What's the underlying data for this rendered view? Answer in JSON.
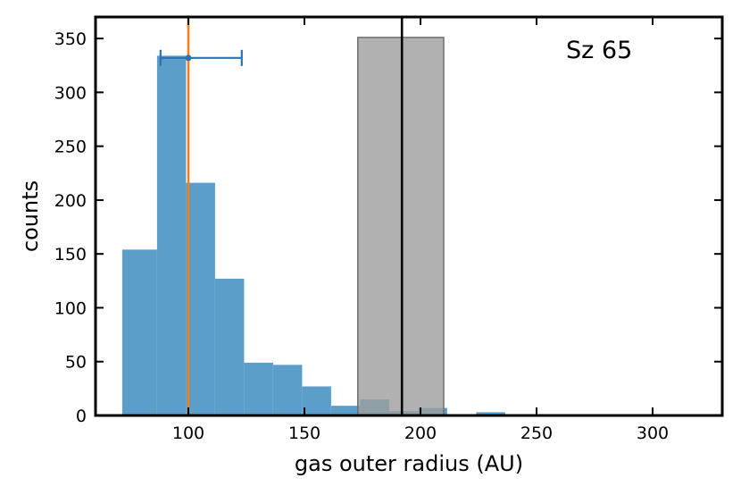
{
  "chart_data": {
    "type": "bar",
    "xlabel": "gas outer radius (AU)",
    "ylabel": "counts",
    "xlim": [
      60,
      330
    ],
    "ylim": [
      0,
      370
    ],
    "xticks": [
      100,
      150,
      200,
      250,
      300
    ],
    "yticks": [
      0,
      50,
      100,
      150,
      200,
      250,
      300,
      350
    ],
    "annotation": "Sz 65",
    "histogram": {
      "color": "#5b9ec9",
      "bins": [
        {
          "x0": 71.5,
          "x1": 86.5,
          "count": 154
        },
        {
          "x0": 86.5,
          "x1": 99.0,
          "count": 334
        },
        {
          "x0": 99.0,
          "x1": 111.5,
          "count": 216
        },
        {
          "x0": 111.5,
          "x1": 124.0,
          "count": 127
        },
        {
          "x0": 124.0,
          "x1": 136.5,
          "count": 49
        },
        {
          "x0": 136.5,
          "x1": 149.0,
          "count": 47
        },
        {
          "x0": 149.0,
          "x1": 161.5,
          "count": 27
        },
        {
          "x0": 161.5,
          "x1": 174.0,
          "count": 9
        },
        {
          "x0": 174.0,
          "x1": 186.5,
          "count": 15
        },
        {
          "x0": 186.5,
          "x1": 199.0,
          "count": 4
        },
        {
          "x0": 199.0,
          "x1": 211.5,
          "count": 7
        },
        {
          "x0": 211.5,
          "x1": 224.0,
          "count": 1
        },
        {
          "x0": 224.0,
          "x1": 236.5,
          "count": 3
        },
        {
          "x0": 236.5,
          "x1": 249.0,
          "count": 1
        },
        {
          "x0": 249.0,
          "x1": 261.5,
          "count": 1
        },
        {
          "x0": 261.5,
          "x1": 274.0,
          "count": 1
        },
        {
          "x0": 274.0,
          "x1": 286.5,
          "count": 1
        },
        {
          "x0": 286.5,
          "x1": 299.0,
          "count": 0
        },
        {
          "x0": 299.0,
          "x1": 311.5,
          "count": 0
        }
      ]
    },
    "shaded_region": {
      "x0": 173,
      "x1": 210,
      "y": 351,
      "color": "#9e9e9e"
    },
    "vertical_lines": [
      {
        "x": 100,
        "color": "#f07f1e"
      },
      {
        "x": 192,
        "color": "#000000"
      }
    ],
    "errorbar": {
      "x": 100,
      "y": 332,
      "xerr_low": 88,
      "xerr_high": 123,
      "color": "#2a73b2"
    }
  }
}
